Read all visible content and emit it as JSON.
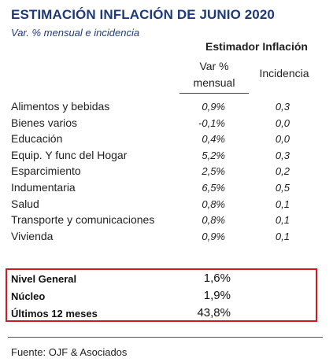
{
  "header": {
    "title": "ESTIMACIÓN INFLACIÓN DE JUNIO 2020",
    "subtitle": "Var. % mensual e incidencia"
  },
  "table": {
    "group_header": "Estimador Inflación",
    "col_var_line1": "Var %",
    "col_var_line2": "mensual",
    "col_inc": "Incidencia",
    "rows": [
      {
        "label": "Alimentos y bebidas",
        "var": "0,9%",
        "inc": "0,3"
      },
      {
        "label": "Bienes varios",
        "var": "-0,1%",
        "inc": "0,0"
      },
      {
        "label": "Educación",
        "var": "0,4%",
        "inc": "0,0"
      },
      {
        "label": "Equip. Y func del Hogar",
        "var": "5,2%",
        "inc": "0,3"
      },
      {
        "label": "Esparcimiento",
        "var": "2,5%",
        "inc": "0,2"
      },
      {
        "label": "Indumentaria",
        "var": "6,5%",
        "inc": "0,5"
      },
      {
        "label": "Salud",
        "var": "0,8%",
        "inc": "0,1"
      },
      {
        "label": "Transporte y comunicaciones",
        "var": "0,8%",
        "inc": "0,1"
      },
      {
        "label": "Vivienda",
        "var": "0,9%",
        "inc": "0,1"
      }
    ]
  },
  "summary": {
    "rows": [
      {
        "label": "Nivel General",
        "value": "1,6%"
      },
      {
        "label": "Núcleo",
        "value": "1,9%"
      },
      {
        "label": "Últimos 12 meses",
        "value": "43,8%"
      }
    ],
    "border_color": "#d31a22"
  },
  "footer": {
    "source": "Fuente: OJF & Asociados"
  },
  "colors": {
    "title": "#1f3a78"
  }
}
